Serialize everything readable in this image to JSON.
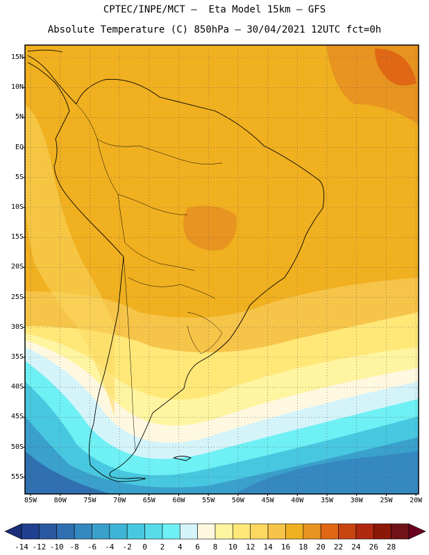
{
  "header": {
    "title_line1": "CPTEC/INPE/MCT –  Eta Model 15km – GFS",
    "title_line2": "Absolute Temperature (C) 850hPa – 30/04/2021 12UTC fct=0h"
  },
  "map": {
    "variable": "Absolute Temperature",
    "units": "C",
    "level": "850hPa",
    "lat_ticks": [
      "15N",
      "10N",
      "5N",
      "EQ",
      "5S",
      "10S",
      "15S",
      "20S",
      "25S",
      "30S",
      "35S",
      "40S",
      "45S",
      "50S",
      "55S"
    ],
    "lon_ticks": [
      "85W",
      "80W",
      "75W",
      "70W",
      "65W",
      "60W",
      "55W",
      "50W",
      "45W",
      "40W",
      "35W",
      "30W",
      "25W",
      "20W"
    ]
  },
  "colorbar": {
    "labels": [
      "-14",
      "-12",
      "-10",
      "-8",
      "-6",
      "-4",
      "-2",
      "0",
      "2",
      "4",
      "6",
      "8",
      "10",
      "12",
      "14",
      "16",
      "18",
      "20",
      "22",
      "24",
      "26",
      "28"
    ],
    "colors": [
      "#1f3f8f",
      "#2a58a0",
      "#3070b0",
      "#3588c0",
      "#3aa0cc",
      "#40b4d6",
      "#48c8e0",
      "#58dcea",
      "#6ef0f4",
      "#d4f4fa",
      "#fff8e0",
      "#fff4a0",
      "#ffe878",
      "#fcd860",
      "#f6c448",
      "#f0b020",
      "#e89420",
      "#e06814",
      "#c84410",
      "#b02810",
      "#8c1808",
      "#701418"
    ],
    "under_color": "#1a2e78",
    "over_color": "#6a0020"
  }
}
